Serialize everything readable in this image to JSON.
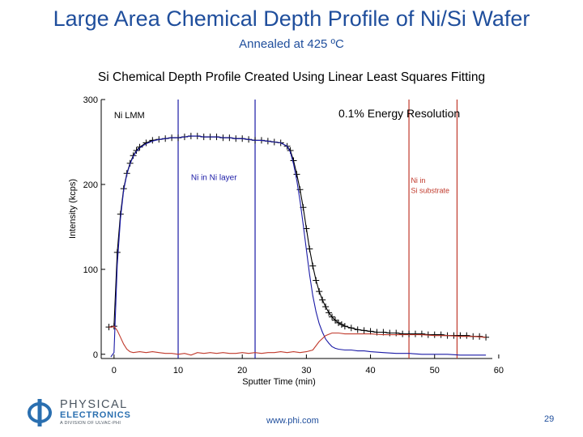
{
  "slide": {
    "title": "Large Area Chemical Depth Profile of Ni/Si Wafer",
    "subtitle": "Annealed at 425 ºC",
    "footer_url": "www.phi.com",
    "page_number": "29"
  },
  "logo": {
    "line1": "PHYSICAL",
    "line2": "ELECTRONICS",
    "line3": "A DIVISION OF ULVAC-PHI",
    "color": "#2a6fb0"
  },
  "chart_data": {
    "type": "line",
    "title": "Si Chemical Depth Profile Created Using Linear Least Squares Fitting",
    "xlabel": "Sputter Time (min)",
    "ylabel": "Intensity (kcps)",
    "xlim": [
      -2,
      59
    ],
    "ylim": [
      -5,
      300
    ],
    "xticks": [
      0,
      10,
      20,
      30,
      40,
      50,
      60
    ],
    "yticks": [
      0,
      100,
      200,
      300
    ],
    "grid": false,
    "annotations": [
      {
        "text": "Ni LMM",
        "x": 0,
        "y": 278,
        "color": "#000000"
      },
      {
        "text": "0.1% Energy Resolution",
        "x": 35,
        "y": 279,
        "color": "#000000"
      },
      {
        "text": "Ni in Ni layer",
        "x": 12,
        "y": 205,
        "color": "#1a1aa6"
      },
      {
        "text": "Ni in",
        "x": 46.3,
        "y": 202,
        "color": "#c0392b"
      },
      {
        "text": "Si substrate",
        "x": 46.3,
        "y": 190,
        "color": "#c0392b"
      }
    ],
    "reference_lines": [
      {
        "x": 10,
        "color": "#1a1aa6"
      },
      {
        "x": 22,
        "color": "#1a1aa6"
      },
      {
        "x": 46,
        "color": "#c0392b"
      },
      {
        "x": 53.5,
        "color": "#c0392b"
      }
    ],
    "series": [
      {
        "role": "measured",
        "color": "#000000",
        "markers": "plus",
        "x": [
          -0.8,
          0,
          0.5,
          1,
          1.5,
          2,
          2.5,
          3,
          3.5,
          4,
          5,
          6,
          7,
          8,
          9,
          10,
          11,
          12,
          13,
          14,
          15,
          16,
          17,
          18,
          19,
          20,
          21,
          22,
          23,
          24,
          25,
          26,
          27,
          27.5,
          28,
          28.5,
          29,
          29.5,
          30,
          30.5,
          31,
          31.5,
          32,
          32.5,
          33,
          33.5,
          34,
          34.5,
          35,
          35.5,
          36,
          37,
          38,
          39,
          40,
          41,
          42,
          43,
          44,
          45,
          46,
          47,
          48,
          49,
          50,
          51,
          52,
          53,
          54,
          55,
          56,
          57,
          58
        ],
        "y": [
          32,
          33,
          120,
          165,
          195,
          213,
          225,
          234,
          240,
          244,
          249,
          252,
          253,
          254,
          255,
          255,
          256,
          257,
          257,
          256,
          256,
          256,
          255,
          255,
          254,
          254,
          253,
          252,
          252,
          251,
          250,
          249,
          245,
          240,
          228,
          212,
          194,
          173,
          148,
          124,
          104,
          87,
          74,
          64,
          56,
          49,
          44,
          40,
          37,
          35,
          33,
          31,
          29,
          28,
          27,
          26,
          26,
          25,
          25,
          24,
          24,
          24,
          24,
          23,
          23,
          23,
          22,
          22,
          22,
          22,
          21,
          21,
          20
        ]
      },
      {
        "role": "Ni in Ni layer component",
        "color": "#1a1aa6",
        "x": [
          -0.5,
          0,
          0.5,
          1,
          1.5,
          2,
          2.5,
          3,
          3.5,
          4,
          5,
          6,
          7,
          8,
          9,
          10,
          11,
          12,
          13,
          14,
          15,
          16,
          17,
          18,
          19,
          20,
          21,
          22,
          23,
          24,
          25,
          26,
          27,
          27.5,
          28,
          28.5,
          29,
          29.5,
          30,
          30.5,
          31,
          31.5,
          32,
          32.5,
          33,
          33.5,
          34,
          34.5,
          35,
          36,
          37,
          38,
          39,
          40,
          42,
          44,
          46,
          48,
          50,
          52,
          54,
          56,
          58
        ],
        "y": [
          -3,
          2,
          105,
          160,
          193,
          212,
          224,
          233,
          239,
          243,
          248,
          251,
          253,
          254,
          255,
          255,
          256,
          257,
          257,
          256,
          256,
          256,
          255,
          255,
          254,
          254,
          253,
          252,
          252,
          251,
          250,
          249,
          245,
          238,
          224,
          205,
          181,
          153,
          123,
          94,
          69,
          50,
          36,
          26,
          18,
          13,
          9,
          7,
          6,
          5,
          5,
          4,
          4,
          3,
          2,
          1,
          1,
          0,
          0,
          0,
          -1,
          -1,
          -1
        ]
      },
      {
        "role": "Ni in Si substrate component",
        "color": "#c0392b",
        "x": [
          -0.8,
          -0.3,
          0,
          0.5,
          1,
          1.5,
          2,
          2.5,
          3,
          4,
          5,
          6,
          7,
          8,
          9,
          10,
          11,
          12,
          13,
          14,
          15,
          16,
          17,
          18,
          19,
          20,
          21,
          22,
          23,
          24,
          25,
          26,
          27,
          28,
          29,
          30,
          31,
          32,
          33,
          34,
          35,
          36,
          38,
          40,
          42,
          44,
          46,
          48,
          50,
          52,
          54,
          56,
          58
        ],
        "y": [
          32,
          32,
          33,
          28,
          20,
          12,
          6,
          3,
          2,
          3,
          2,
          3,
          2,
          1,
          1,
          0,
          1,
          -1,
          2,
          1,
          2,
          1,
          2,
          1,
          1,
          2,
          1,
          2,
          1,
          2,
          2,
          3,
          2,
          3,
          2,
          3,
          5,
          15,
          22,
          25,
          25,
          24,
          24,
          24,
          23,
          23,
          23,
          23,
          22,
          22,
          21,
          21,
          20
        ]
      }
    ]
  }
}
